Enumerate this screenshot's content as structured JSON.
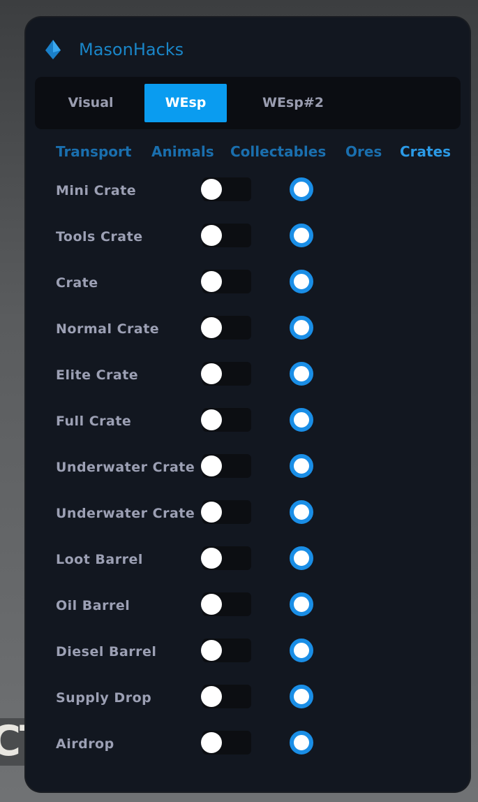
{
  "background": {
    "partial_text": "CT"
  },
  "app": {
    "title": "MasonHacks",
    "accent": "#0a9cf0"
  },
  "tabs": [
    {
      "label": "Visual",
      "active": false
    },
    {
      "label": "WEsp",
      "active": true
    },
    {
      "label": "WEsp#2",
      "active": false
    }
  ],
  "subtabs": [
    {
      "label": "Transport",
      "active": false
    },
    {
      "label": "Animals",
      "active": false
    },
    {
      "label": "Collectables",
      "active": false
    },
    {
      "label": "Ores",
      "active": false
    },
    {
      "label": "Crates",
      "active": true
    }
  ],
  "items": [
    {
      "label": "Mini Crate",
      "toggle": false,
      "radio": true
    },
    {
      "label": "Tools Crate",
      "toggle": false,
      "radio": true
    },
    {
      "label": "Crate",
      "toggle": false,
      "radio": true
    },
    {
      "label": "Normal Crate",
      "toggle": false,
      "radio": true
    },
    {
      "label": "Elite Crate",
      "toggle": false,
      "radio": true
    },
    {
      "label": "Full Crate",
      "toggle": false,
      "radio": true
    },
    {
      "label": "Underwater Crate",
      "toggle": false,
      "radio": true
    },
    {
      "label": "Underwater Crate",
      "toggle": false,
      "radio": true
    },
    {
      "label": "Loot Barrel",
      "toggle": false,
      "radio": true
    },
    {
      "label": "Oil Barrel",
      "toggle": false,
      "radio": true
    },
    {
      "label": "Diesel Barrel",
      "toggle": false,
      "radio": true
    },
    {
      "label": "Supply Drop",
      "toggle": false,
      "radio": true
    },
    {
      "label": "Airdrop",
      "toggle": false,
      "radio": true
    }
  ]
}
